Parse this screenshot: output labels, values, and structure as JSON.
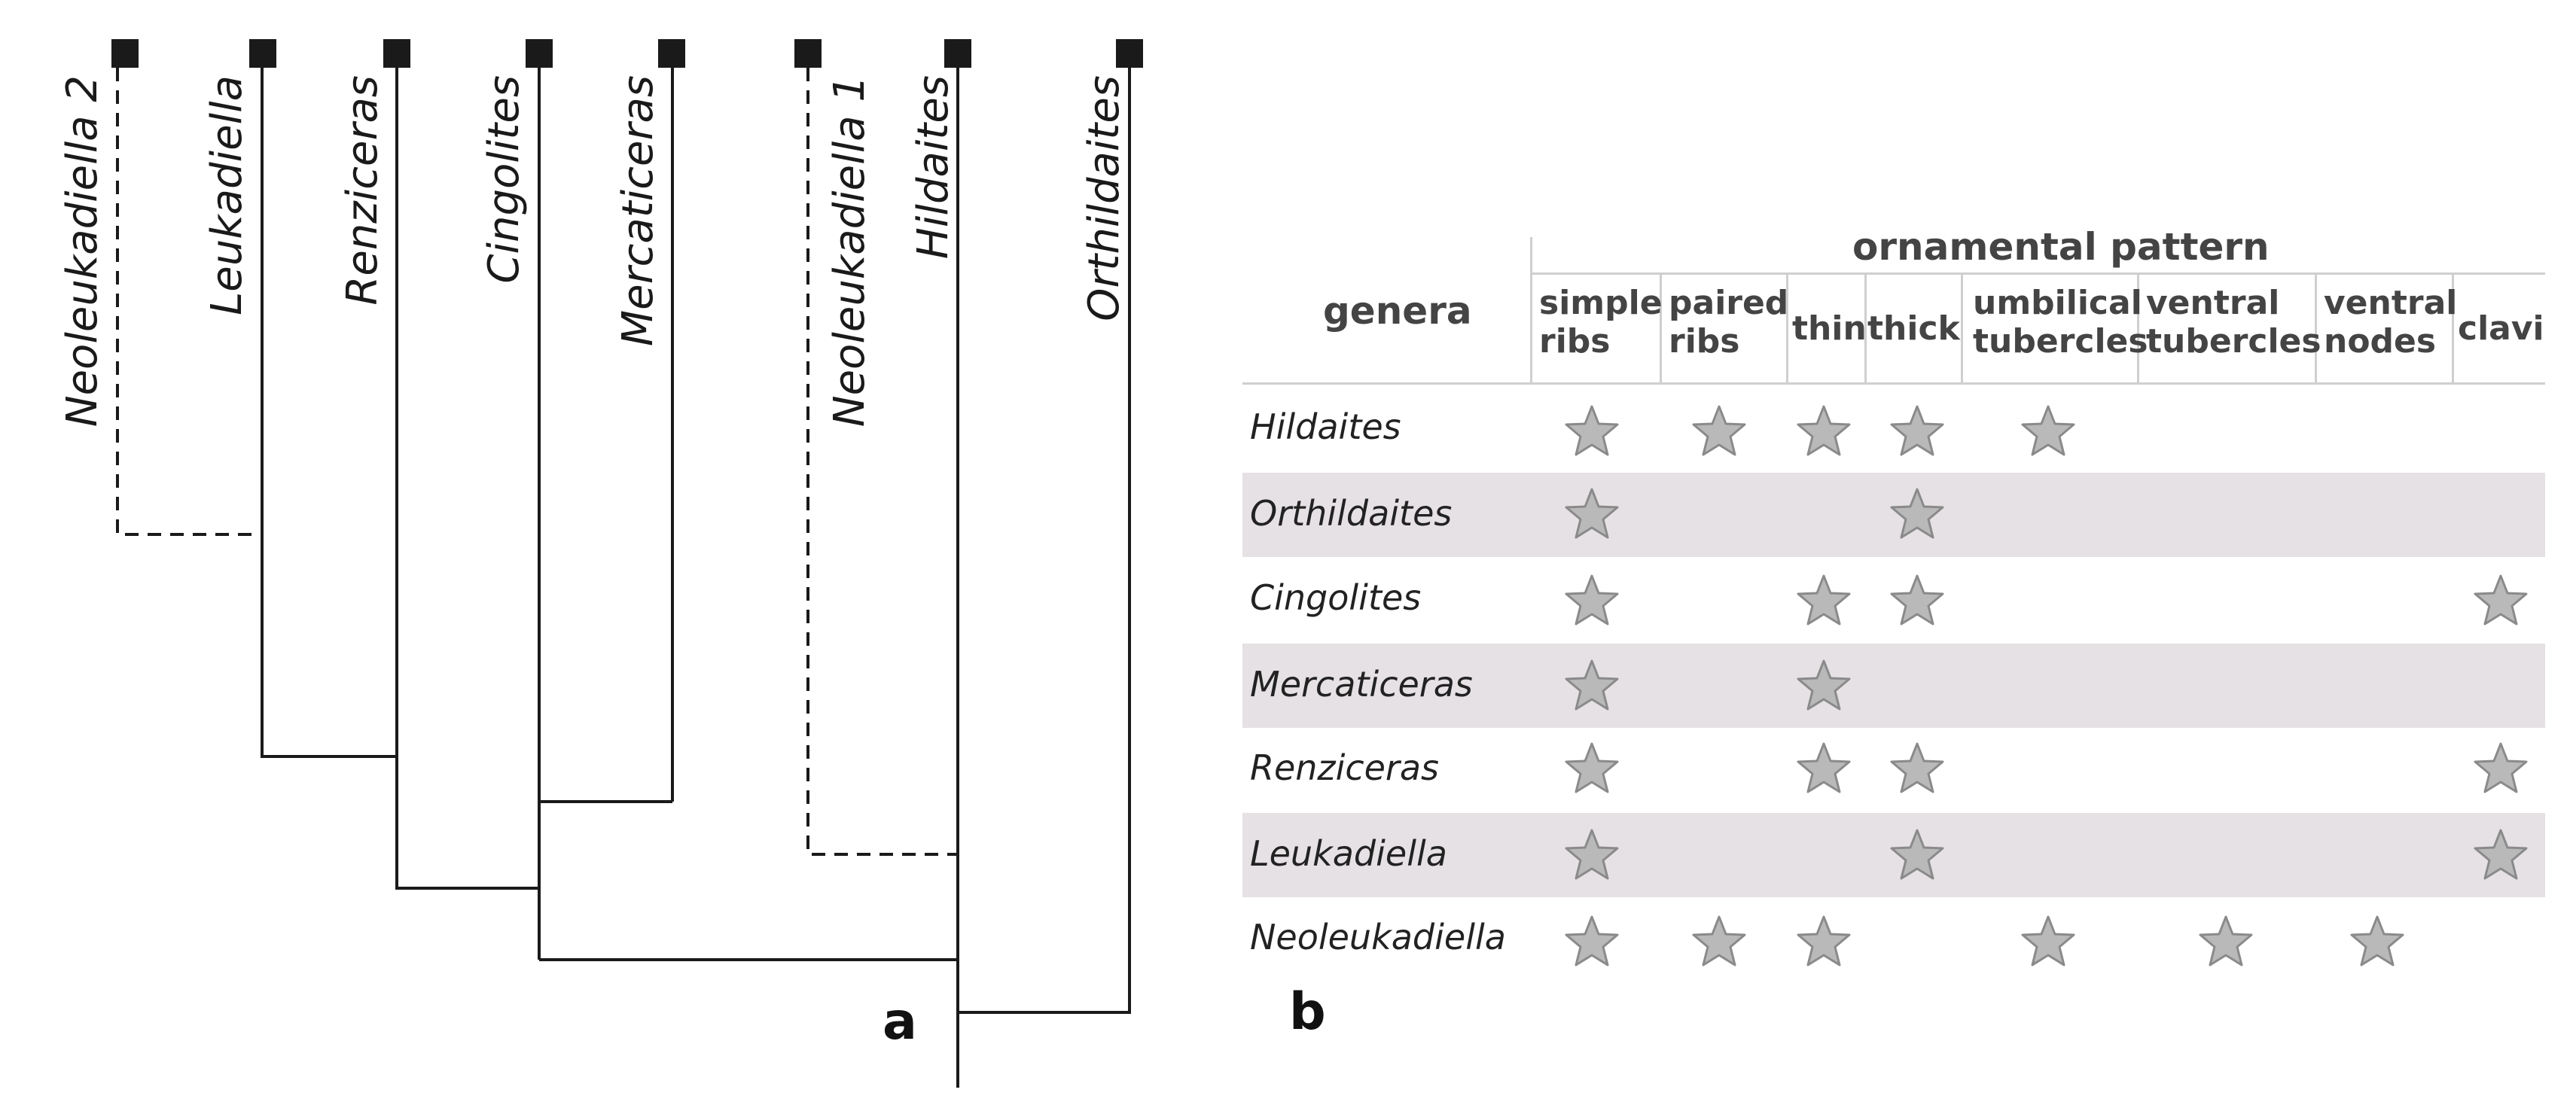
{
  "tree": {
    "taxa": [
      "Neoleukadiella 2",
      "Leukadiella",
      "Renziceras",
      "Cingolites",
      "Mercaticeras",
      "Neoleukadiella 1",
      "Hildaites",
      "Orthildaites"
    ],
    "panel_label": "a"
  },
  "table": {
    "panel_label": "b",
    "title": "ornamental pattern",
    "genera_header": "genera",
    "columns": [
      [
        "simple",
        "ribs"
      ],
      [
        "paired",
        "ribs"
      ],
      [
        "thin"
      ],
      [
        "thick"
      ],
      [
        "umbilical",
        "tubercles"
      ],
      [
        "ventral",
        "tubercles"
      ],
      [
        "ventral",
        "nodes"
      ],
      [
        "clavi"
      ]
    ],
    "rows": [
      {
        "genus": "Hildaites",
        "marks": [
          1,
          1,
          1,
          1,
          1,
          0,
          0,
          0
        ]
      },
      {
        "genus": "Orthildaites",
        "marks": [
          1,
          0,
          0,
          1,
          0,
          0,
          0,
          0
        ]
      },
      {
        "genus": "Cingolites",
        "marks": [
          1,
          0,
          1,
          1,
          0,
          0,
          0,
          1
        ]
      },
      {
        "genus": "Mercaticeras",
        "marks": [
          1,
          0,
          1,
          0,
          0,
          0,
          0,
          0
        ]
      },
      {
        "genus": "Renziceras",
        "marks": [
          1,
          0,
          1,
          1,
          0,
          0,
          0,
          1
        ]
      },
      {
        "genus": "Leukadiella",
        "marks": [
          1,
          0,
          0,
          1,
          0,
          0,
          0,
          1
        ]
      },
      {
        "genus": "Neoleukadiella",
        "marks": [
          1,
          1,
          1,
          0,
          1,
          1,
          1,
          0
        ]
      }
    ],
    "colors": {
      "band": "#e6e1e4",
      "star_fill": "#b9b9b9",
      "star_stroke": "#8a8a8a",
      "rule": "#cfcfcf"
    }
  }
}
